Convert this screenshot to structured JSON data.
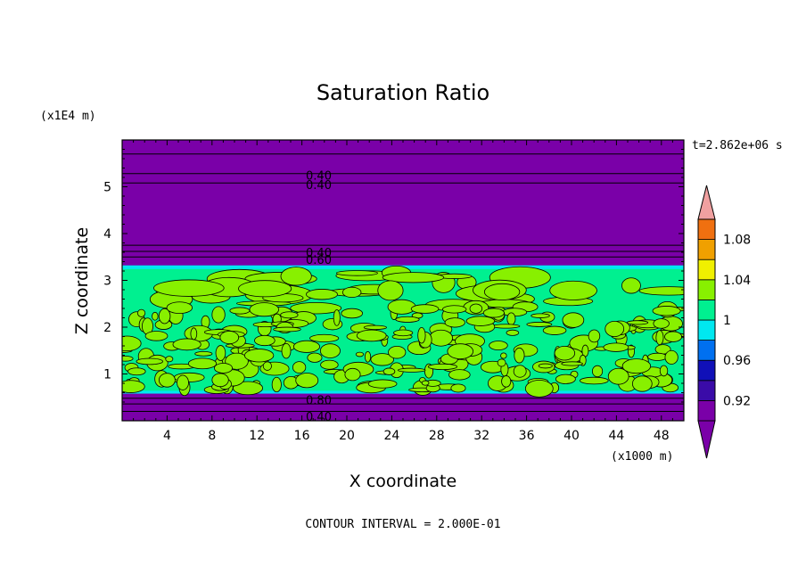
{
  "chart_data": {
    "type": "heatmap",
    "title": "Saturation Ratio",
    "xlabel": "X coordinate",
    "ylabel": "Z coordinate",
    "x_unit": "(x1000 m)",
    "y_unit": "(x1E4 m)",
    "time_label": "t=2.862e+06 s",
    "footer": "CONTOUR INTERVAL = 2.000E-01",
    "xlim": [
      0,
      50
    ],
    "ylim": [
      0,
      6
    ],
    "x_ticks": [
      4,
      8,
      12,
      16,
      20,
      24,
      28,
      32,
      36,
      40,
      44,
      48
    ],
    "y_ticks": [
      1,
      2,
      3,
      4,
      5
    ],
    "contour_labels": [
      {
        "text": "0.40",
        "x": 17.5,
        "z": 5.25
      },
      {
        "text": "0.40",
        "x": 17.5,
        "z": 5.05
      },
      {
        "text": "0.40",
        "x": 17.5,
        "z": 3.6
      },
      {
        "text": "0.60",
        "x": 17.5,
        "z": 3.45
      },
      {
        "text": "0.80",
        "x": 17.5,
        "z": 0.45
      },
      {
        "text": "0.40",
        "x": 17.5,
        "z": 0.1
      }
    ],
    "colorbar": {
      "levels": [
        0.9,
        0.92,
        0.94,
        0.96,
        0.98,
        1.0,
        1.02,
        1.04,
        1.06,
        1.08,
        1.1
      ],
      "colors": [
        "#7a00a8",
        "#3a0ba8",
        "#1010b8",
        "#0070f0",
        "#00e8f0",
        "#00f090",
        "#88f000",
        "#f0f000",
        "#f0a000",
        "#f07010",
        "#f01818"
      ],
      "under_color": "#7a00a8",
      "over_color": "#f0a0a0",
      "tick_labels": [
        "0.92",
        "0.96",
        "1",
        "1.04",
        "1.08"
      ],
      "tick_values": [
        0.92,
        0.96,
        1.0,
        1.04,
        1.08
      ]
    },
    "regions": [
      {
        "name": "upper-dry-layer",
        "z": [
          3.3,
          6.0
        ],
        "color": "#7a00a8"
      },
      {
        "name": "cloud-layer",
        "z": [
          0.6,
          3.3
        ],
        "color": "#00f090",
        "patch_color": "#88f000"
      },
      {
        "name": "lower-dry-layer",
        "z": [
          0.0,
          0.6
        ],
        "color": "#7a00a8"
      }
    ]
  }
}
